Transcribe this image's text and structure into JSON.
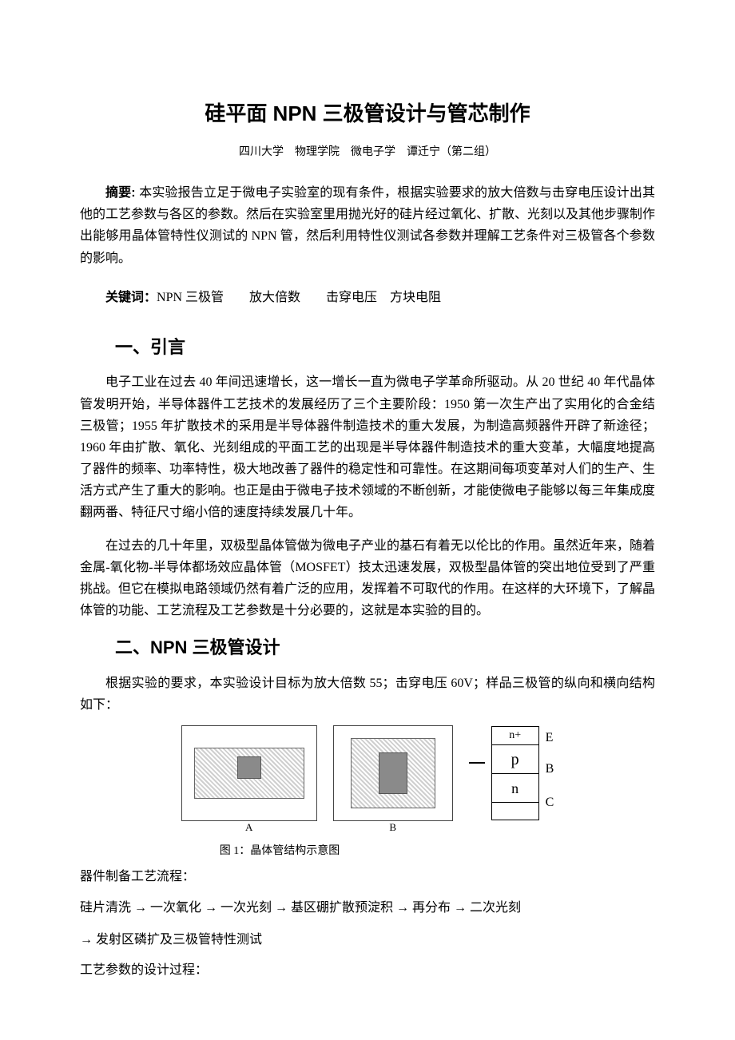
{
  "title": "硅平面 NPN 三极管设计与管芯制作",
  "author_line": "四川大学　物理学院　微电子学　谭迁宁（第二组）",
  "abstract_label": "摘要: ",
  "abstract_text": "本实验报告立足于微电子实验室的现有条件，根据实验要求的放大倍数与击穿电压设计出其他的工艺参数与各区的参数。然后在实验室里用抛光好的硅片经过氧化、扩散、光刻以及其他步骤制作出能够用晶体管特性仪测试的 NPN 管，然后利用特性仪测试各参数并理解工艺条件对三极管各个参数的影响。",
  "keywords_label": "关键词：",
  "keywords_text": "NPN 三极管　　放大倍数　　击穿电压　方块电阻",
  "sec1_heading": "一、引言",
  "sec1_p1": "电子工业在过去 40 年间迅速增长，这一增长一直为微电子学革命所驱动。从 20 世纪 40 年代晶体管发明开始，半导体器件工艺技术的发展经历了三个主要阶段：1950 第一次生产出了实用化的合金结三极管；1955 年扩散技术的采用是半导体器件制造技术的重大发展，为制造高频器件开辟了新途径；1960 年由扩散、氧化、光刻组成的平面工艺的出现是半导体器件制造技术的重大变革，大幅度地提高了器件的频率、功率特性，极大地改善了器件的稳定性和可靠性。在这期间每项变革对人们的生产、生活方式产生了重大的影响。也正是由于微电子技术领域的不断创新，才能使微电子能够以每三年集成度翻两番、特征尺寸缩小倍的速度持续发展几十年。",
  "sec1_p2": "在过去的几十年里，双极型晶体管做为微电子产业的基石有着无以伦比的作用。虽然近年来，随着金属-氧化物-半导体都场效应晶体管（MOSFET）技太迅速发展，双极型晶体管的突出地位受到了严重挑战。但它在模拟电路领域仍然有着广泛的应用，发挥着不可取代的作用。在这样的大环境下，了解晶体管的功能、工艺流程及工艺参数是十分必要的，这就是本实验的目的。",
  "sec2_heading": "二、NPN 三极管设计",
  "sec2_p1": "根据实验的要求，本实验设计目标为放大倍数 55；击穿电压 60V；样品三极管的纵向和横向结构如下：",
  "figure": {
    "mask_a_label": "A",
    "mask_b_label": "B",
    "layers": {
      "nplus": "n+",
      "p": "p",
      "n": "n"
    },
    "pins": {
      "e": "E",
      "b": "B",
      "c": "C"
    },
    "caption": "图 1：晶体管结构示意图",
    "colors": {
      "hatch_light": "#cfcfcf",
      "hatch_bg": "#ffffff",
      "inner_gray": "#8a8a8a",
      "border": "#000000"
    }
  },
  "flow_label": "器件制备工艺流程：",
  "flow_line1": "硅片清洗 → 一次氧化 → 一次光刻 → 基区硼扩散预淀积 → 再分布 → 二次光刻",
  "flow_line2": "→ 发射区磷扩及三极管特性测试",
  "params_label": "工艺参数的设计过程："
}
